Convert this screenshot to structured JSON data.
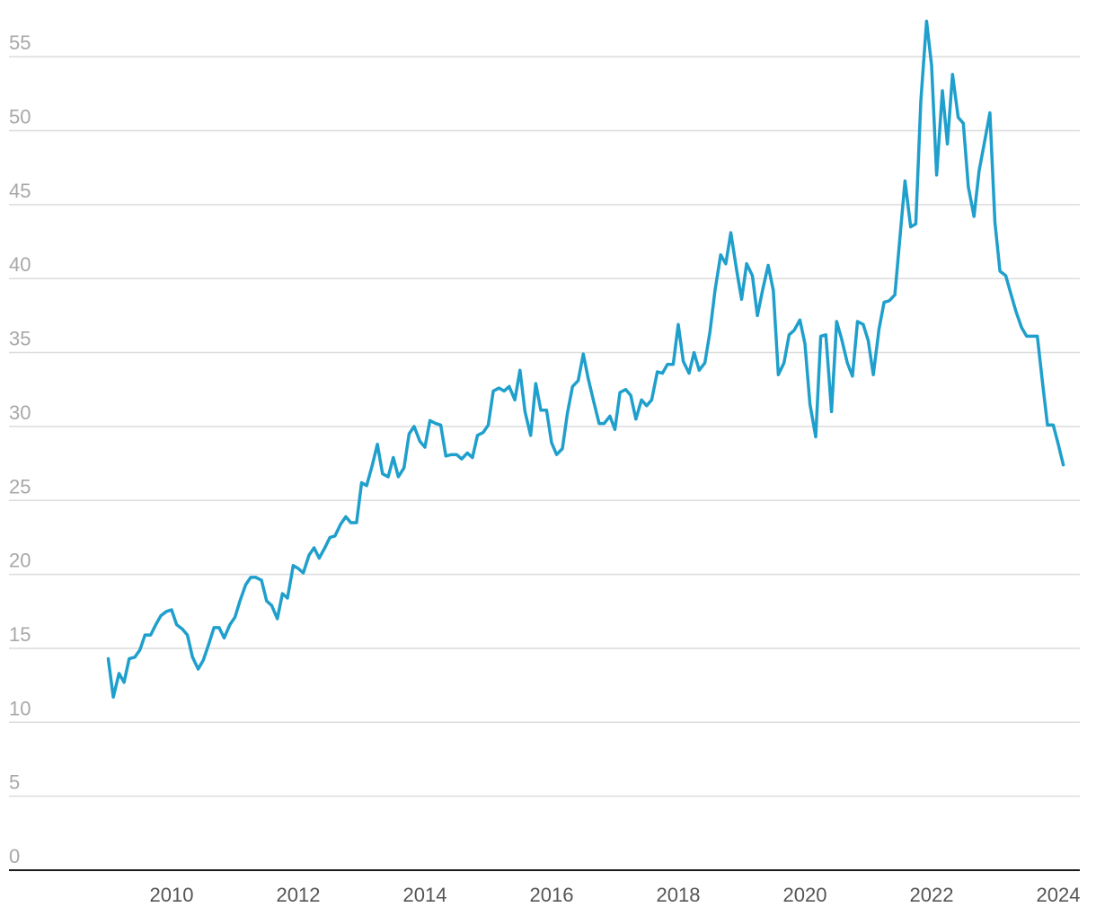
{
  "chart_data": {
    "type": "line",
    "title": "",
    "xlabel": "",
    "ylabel": "",
    "ylim": [
      0,
      55
    ],
    "xlim": [
      2008.25,
      2024.25
    ],
    "grid": true,
    "y_ticks": [
      {
        "value": 0,
        "label": "0"
      },
      {
        "value": 5,
        "label": "5"
      },
      {
        "value": 10,
        "label": "10"
      },
      {
        "value": 15,
        "label": "15"
      },
      {
        "value": 20,
        "label": "20"
      },
      {
        "value": 25,
        "label": "25"
      },
      {
        "value": 30,
        "label": "30"
      },
      {
        "value": 35,
        "label": "35"
      },
      {
        "value": 40,
        "label": "40"
      },
      {
        "value": 45,
        "label": "45"
      },
      {
        "value": 50,
        "label": "50"
      },
      {
        "value": 55,
        "label": "55"
      }
    ],
    "x_ticks": [
      {
        "value": 2010,
        "label": "2010"
      },
      {
        "value": 2012,
        "label": "2012"
      },
      {
        "value": 2014,
        "label": "2014"
      },
      {
        "value": 2016,
        "label": "2016"
      },
      {
        "value": 2018,
        "label": "2018"
      },
      {
        "value": 2020,
        "label": "2020"
      },
      {
        "value": 2022,
        "label": "2022"
      },
      {
        "value": 2024,
        "label": "2024"
      }
    ],
    "series": [
      {
        "color": "#1f9fcc",
        "points": [
          [
            2009.0,
            14.3
          ],
          [
            2009.08,
            11.7
          ],
          [
            2009.17,
            13.3
          ],
          [
            2009.25,
            12.7
          ],
          [
            2009.33,
            14.3
          ],
          [
            2009.42,
            14.4
          ],
          [
            2009.5,
            14.9
          ],
          [
            2009.58,
            15.9
          ],
          [
            2009.67,
            15.9
          ],
          [
            2009.75,
            16.6
          ],
          [
            2009.83,
            17.2
          ],
          [
            2009.92,
            17.5
          ],
          [
            2010.0,
            17.6
          ],
          [
            2010.08,
            16.6
          ],
          [
            2010.17,
            16.3
          ],
          [
            2010.25,
            15.9
          ],
          [
            2010.33,
            14.4
          ],
          [
            2010.42,
            13.6
          ],
          [
            2010.5,
            14.2
          ],
          [
            2010.58,
            15.2
          ],
          [
            2010.67,
            16.4
          ],
          [
            2010.75,
            16.4
          ],
          [
            2010.83,
            15.7
          ],
          [
            2010.92,
            16.6
          ],
          [
            2011.0,
            17.1
          ],
          [
            2011.08,
            18.2
          ],
          [
            2011.17,
            19.3
          ],
          [
            2011.25,
            19.8
          ],
          [
            2011.33,
            19.8
          ],
          [
            2011.42,
            19.6
          ],
          [
            2011.5,
            18.2
          ],
          [
            2011.58,
            17.9
          ],
          [
            2011.67,
            17.0
          ],
          [
            2011.75,
            18.7
          ],
          [
            2011.83,
            18.4
          ],
          [
            2011.92,
            20.6
          ],
          [
            2012.0,
            20.4
          ],
          [
            2012.08,
            20.1
          ],
          [
            2012.17,
            21.3
          ],
          [
            2012.25,
            21.8
          ],
          [
            2012.33,
            21.1
          ],
          [
            2012.42,
            21.8
          ],
          [
            2012.5,
            22.5
          ],
          [
            2012.58,
            22.6
          ],
          [
            2012.67,
            23.4
          ],
          [
            2012.75,
            23.9
          ],
          [
            2012.83,
            23.5
          ],
          [
            2012.92,
            23.5
          ],
          [
            2013.0,
            26.2
          ],
          [
            2013.08,
            26.0
          ],
          [
            2013.17,
            27.4
          ],
          [
            2013.25,
            28.8
          ],
          [
            2013.33,
            26.8
          ],
          [
            2013.42,
            26.6
          ],
          [
            2013.5,
            27.9
          ],
          [
            2013.58,
            26.6
          ],
          [
            2013.67,
            27.2
          ],
          [
            2013.75,
            29.5
          ],
          [
            2013.83,
            30.0
          ],
          [
            2013.92,
            29.0
          ],
          [
            2014.0,
            28.6
          ],
          [
            2014.08,
            30.4
          ],
          [
            2014.17,
            30.2
          ],
          [
            2014.25,
            30.1
          ],
          [
            2014.33,
            28.0
          ],
          [
            2014.42,
            28.1
          ],
          [
            2014.5,
            28.1
          ],
          [
            2014.58,
            27.8
          ],
          [
            2014.67,
            28.2
          ],
          [
            2014.75,
            27.9
          ],
          [
            2014.83,
            29.4
          ],
          [
            2014.92,
            29.6
          ],
          [
            2015.0,
            30.1
          ],
          [
            2015.08,
            32.4
          ],
          [
            2015.17,
            32.6
          ],
          [
            2015.25,
            32.4
          ],
          [
            2015.33,
            32.7
          ],
          [
            2015.42,
            31.8
          ],
          [
            2015.5,
            33.8
          ],
          [
            2015.58,
            31.0
          ],
          [
            2015.67,
            29.4
          ],
          [
            2015.75,
            32.9
          ],
          [
            2015.83,
            31.1
          ],
          [
            2015.92,
            31.1
          ],
          [
            2016.0,
            28.9
          ],
          [
            2016.08,
            28.1
          ],
          [
            2016.17,
            28.5
          ],
          [
            2016.25,
            30.9
          ],
          [
            2016.33,
            32.7
          ],
          [
            2016.42,
            33.1
          ],
          [
            2016.5,
            34.9
          ],
          [
            2016.58,
            33.2
          ],
          [
            2016.67,
            31.6
          ],
          [
            2016.75,
            30.2
          ],
          [
            2016.83,
            30.2
          ],
          [
            2016.92,
            30.7
          ],
          [
            2017.0,
            29.8
          ],
          [
            2017.08,
            32.3
          ],
          [
            2017.17,
            32.5
          ],
          [
            2017.25,
            32.1
          ],
          [
            2017.33,
            30.5
          ],
          [
            2017.42,
            31.8
          ],
          [
            2017.5,
            31.4
          ],
          [
            2017.58,
            31.8
          ],
          [
            2017.67,
            33.7
          ],
          [
            2017.75,
            33.6
          ],
          [
            2017.83,
            34.2
          ],
          [
            2017.92,
            34.2
          ],
          [
            2018.0,
            36.9
          ],
          [
            2018.08,
            34.4
          ],
          [
            2018.17,
            33.6
          ],
          [
            2018.25,
            35.0
          ],
          [
            2018.33,
            33.8
          ],
          [
            2018.42,
            34.3
          ],
          [
            2018.5,
            36.4
          ],
          [
            2018.58,
            39.2
          ],
          [
            2018.67,
            41.6
          ],
          [
            2018.75,
            41.0
          ],
          [
            2018.83,
            43.1
          ],
          [
            2018.92,
            40.6
          ],
          [
            2019.0,
            38.6
          ],
          [
            2019.08,
            41.0
          ],
          [
            2019.17,
            40.2
          ],
          [
            2019.25,
            37.5
          ],
          [
            2019.33,
            39.2
          ],
          [
            2019.42,
            40.9
          ],
          [
            2019.5,
            39.2
          ],
          [
            2019.58,
            33.5
          ],
          [
            2019.67,
            34.3
          ],
          [
            2019.75,
            36.2
          ],
          [
            2019.83,
            36.5
          ],
          [
            2019.92,
            37.2
          ],
          [
            2020.0,
            35.6
          ],
          [
            2020.08,
            31.5
          ],
          [
            2020.17,
            29.3
          ],
          [
            2020.25,
            36.1
          ],
          [
            2020.33,
            36.2
          ],
          [
            2020.42,
            31.0
          ],
          [
            2020.5,
            37.1
          ],
          [
            2020.58,
            35.9
          ],
          [
            2020.67,
            34.3
          ],
          [
            2020.75,
            33.4
          ],
          [
            2020.83,
            37.1
          ],
          [
            2020.92,
            36.9
          ],
          [
            2021.0,
            35.8
          ],
          [
            2021.08,
            33.5
          ],
          [
            2021.17,
            36.6
          ],
          [
            2021.25,
            38.4
          ],
          [
            2021.33,
            38.5
          ],
          [
            2021.42,
            38.9
          ],
          [
            2021.5,
            42.8
          ],
          [
            2021.58,
            46.6
          ],
          [
            2021.67,
            43.5
          ],
          [
            2021.75,
            43.7
          ],
          [
            2021.83,
            52.0
          ],
          [
            2021.92,
            57.4
          ],
          [
            2022.0,
            54.4
          ],
          [
            2022.08,
            47.0
          ],
          [
            2022.17,
            52.7
          ],
          [
            2022.25,
            49.1
          ],
          [
            2022.33,
            53.8
          ],
          [
            2022.42,
            50.9
          ],
          [
            2022.5,
            50.5
          ],
          [
            2022.58,
            46.2
          ],
          [
            2022.67,
            44.2
          ],
          [
            2022.75,
            47.3
          ],
          [
            2022.83,
            49.1
          ],
          [
            2022.92,
            51.2
          ],
          [
            2023.0,
            43.8
          ],
          [
            2023.08,
            40.5
          ],
          [
            2023.17,
            40.2
          ],
          [
            2023.25,
            39.0
          ],
          [
            2023.33,
            37.8
          ],
          [
            2023.42,
            36.7
          ],
          [
            2023.5,
            36.1
          ],
          [
            2023.58,
            36.1
          ],
          [
            2023.67,
            36.1
          ],
          [
            2023.75,
            33.0
          ],
          [
            2023.83,
            30.1
          ],
          [
            2023.92,
            30.1
          ],
          [
            2024.0,
            28.8
          ],
          [
            2024.08,
            27.4
          ]
        ]
      }
    ]
  }
}
